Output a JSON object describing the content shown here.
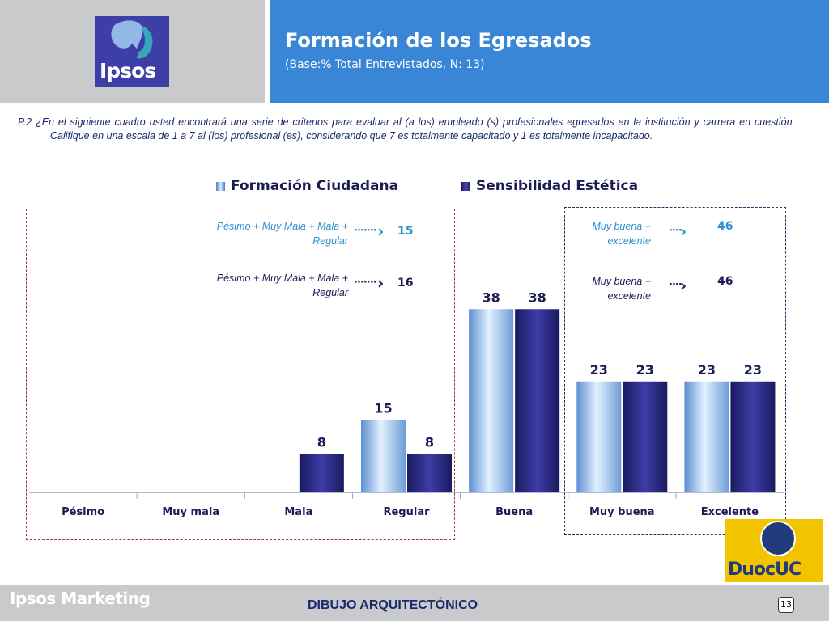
{
  "header": {
    "logo_text": "Ipsos",
    "title": "Formación de los Egresados",
    "subtitle": "(Base:% Total Entrevistados, N: 13)"
  },
  "question": "P.2 ¿En el siguiente cuadro usted encontrará una serie de criterios para evaluar al (a los) empleado (s) profesionales egresados en la institución y carrera en cuestión. Califique en una escala de 1 a 7 al (los) profesional (es), considerando que 7 es totalmente capacitado y 1 es totalmente incapacitado.",
  "annotations": {
    "left_1_label": "Pésimo + Muy Mala + Mala + Regular",
    "left_1_value": "15",
    "left_2_label": "Pésimo + Muy Mala + Mala + Regular",
    "left_2_value": "16",
    "right_1_label": "Muy buena + excelente",
    "right_1_value": "46",
    "right_2_label": "Muy buena + excelente",
    "right_2_value": "46"
  },
  "footer": {
    "brand": "Ipsos Marketing",
    "section": "DIBUJO ARQUITECTÓNICO",
    "page": "13",
    "partner_logo_text": "DuocUC"
  },
  "colors": {
    "series_1": "#9cc5ee",
    "series_2": "#23237a",
    "header_blue": "#3a86d6",
    "header_gray": "#c9cacc"
  },
  "chart_data": {
    "type": "bar",
    "categories": [
      "Pésimo",
      "Muy mala",
      "Mala",
      "Regular",
      "Buena",
      "Muy buena",
      "Excelente"
    ],
    "series": [
      {
        "name": "Formación Ciudadana",
        "values": [
          null,
          null,
          null,
          15,
          38,
          23,
          23
        ]
      },
      {
        "name": "Sensibilidad Estética",
        "values": [
          null,
          null,
          8,
          8,
          38,
          23,
          23
        ]
      }
    ],
    "ylim": [
      0,
      60
    ],
    "legend": "top",
    "grid": false
  }
}
